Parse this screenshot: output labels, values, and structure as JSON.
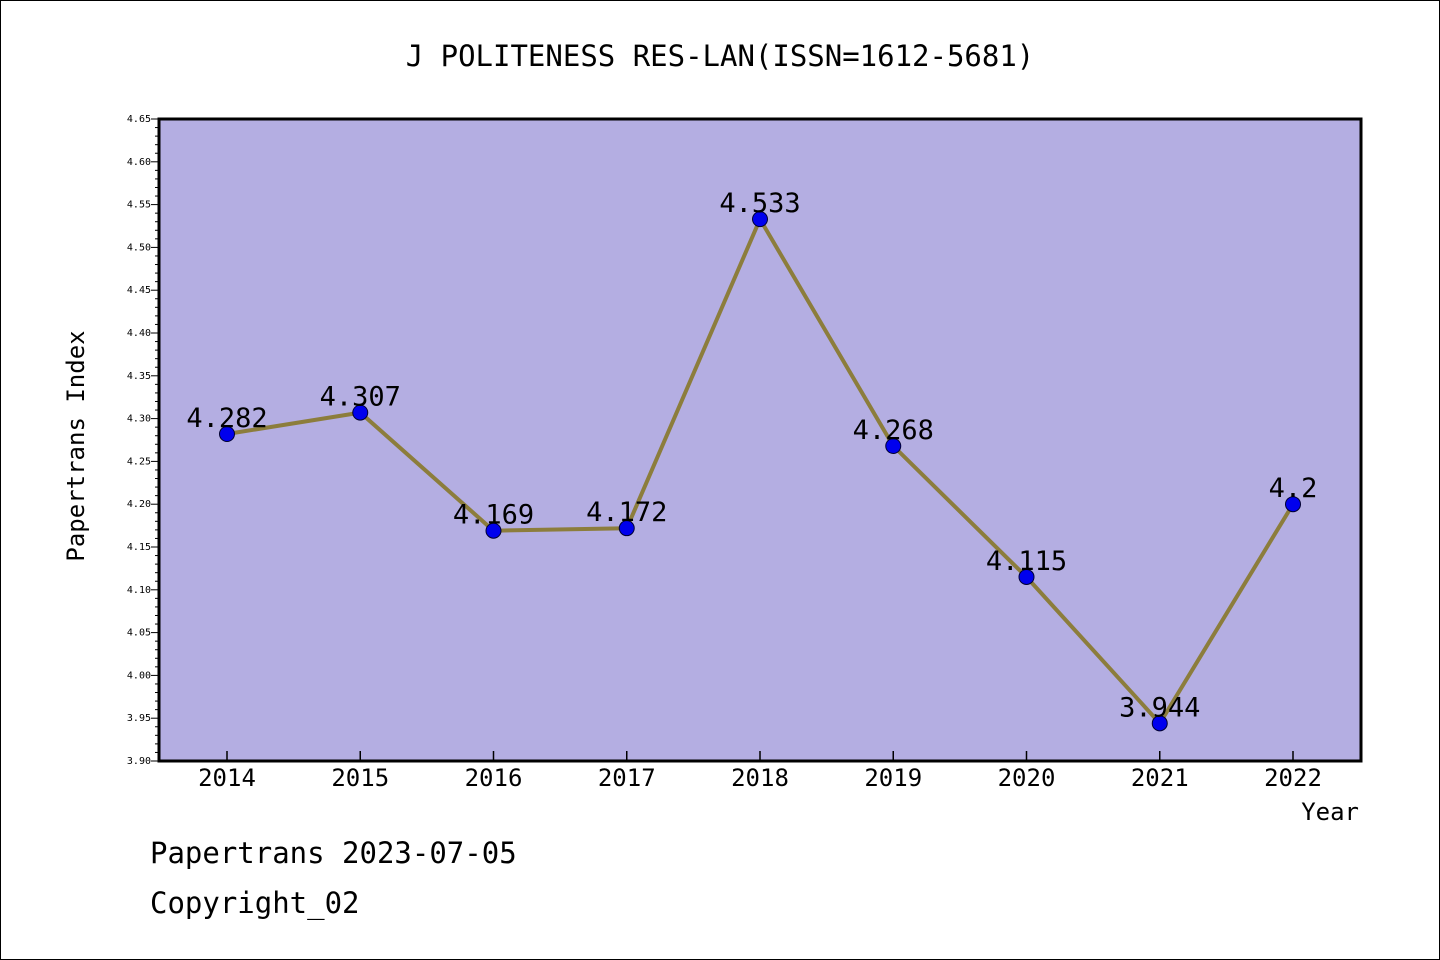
{
  "chart_data": {
    "type": "line",
    "title": "J POLITENESS RES-LAN(ISSN=1612-5681)",
    "xlabel": "Year",
    "ylabel": "Papertrans Index",
    "categories": [
      "2014",
      "2015",
      "2016",
      "2017",
      "2018",
      "2019",
      "2020",
      "2021",
      "2022"
    ],
    "values": [
      4.282,
      4.307,
      4.169,
      4.172,
      4.533,
      4.268,
      4.115,
      3.944,
      4.2
    ],
    "data_labels": [
      "4.282",
      "4.307",
      "4.169",
      "4.172",
      "4.533",
      "4.268",
      "4.115",
      "3.944",
      "4.2"
    ],
    "ylim": [
      3.9,
      4.65
    ],
    "yticks": [
      "3.90",
      "3.95",
      "4.00",
      "4.05",
      "4.10",
      "4.15",
      "4.20",
      "4.25",
      "4.30",
      "4.35",
      "4.40",
      "4.45",
      "4.50",
      "4.55",
      "4.60",
      "4.65"
    ],
    "grid": false,
    "legend": "none",
    "colors": {
      "plot_background": "#b4aee2",
      "line": "#8c7d3c",
      "marker": "#0000ee"
    }
  },
  "footer": {
    "line1": "Papertrans 2023-07-05",
    "line2": "Copyright_02"
  }
}
